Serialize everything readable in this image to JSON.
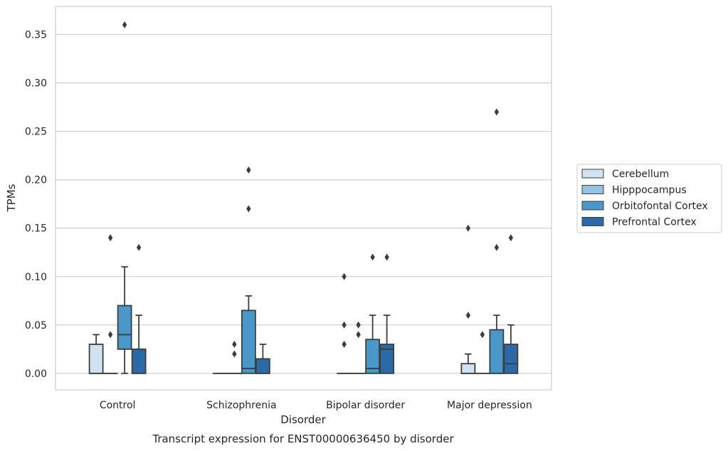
{
  "caption": "Transcript expression for ENST00000636450 by disorder",
  "chart_data": {
    "type": "box",
    "xlabel": "Disorder",
    "ylabel": "TPMs",
    "ylim": [
      -0.017,
      0.379
    ],
    "yticks": [
      "0.00",
      "0.05",
      "0.10",
      "0.15",
      "0.20",
      "0.25",
      "0.30",
      "0.35"
    ],
    "grid": true,
    "legend_position": "right",
    "categories": [
      "Control",
      "Schizophrenia",
      "Bipolar disorder",
      "Major depression"
    ],
    "series": [
      {
        "name": "Cerebellum",
        "color": "#d0e1f2",
        "boxes": [
          {
            "q1": 0.0,
            "median": 0.0,
            "q3": 0.03,
            "whisker_low": 0.0,
            "whisker_high": 0.04,
            "outliers": []
          },
          {
            "q1": 0.0,
            "median": 0.0,
            "q3": 0.0,
            "whisker_low": 0.0,
            "whisker_high": 0.0,
            "outliers": []
          },
          {
            "q1": 0.0,
            "median": 0.0,
            "q3": 0.0,
            "whisker_low": 0.0,
            "whisker_high": 0.0,
            "outliers": [
              0.03,
              0.05,
              0.1
            ]
          },
          {
            "q1": 0.0,
            "median": 0.0,
            "q3": 0.01,
            "whisker_low": 0.0,
            "whisker_high": 0.02,
            "outliers": [
              0.06,
              0.15
            ]
          }
        ]
      },
      {
        "name": "Hipppocampus",
        "color": "#94c4df",
        "boxes": [
          {
            "q1": 0.0,
            "median": 0.0,
            "q3": 0.0,
            "whisker_low": 0.0,
            "whisker_high": 0.0,
            "outliers": [
              0.04,
              0.14
            ]
          },
          {
            "q1": 0.0,
            "median": 0.0,
            "q3": 0.0,
            "whisker_low": 0.0,
            "whisker_high": 0.0,
            "outliers": [
              0.02,
              0.03
            ]
          },
          {
            "q1": 0.0,
            "median": 0.0,
            "q3": 0.0,
            "whisker_low": 0.0,
            "whisker_high": 0.0,
            "outliers": [
              0.04,
              0.05
            ]
          },
          {
            "q1": 0.0,
            "median": 0.0,
            "q3": 0.0,
            "whisker_low": 0.0,
            "whisker_high": 0.0,
            "outliers": [
              0.04
            ]
          }
        ]
      },
      {
        "name": "Orbitofontal Cortex",
        "color": "#4a98c9",
        "boxes": [
          {
            "q1": 0.025,
            "median": 0.04,
            "q3": 0.07,
            "whisker_low": 0.0,
            "whisker_high": 0.11,
            "outliers": [
              0.36
            ]
          },
          {
            "q1": 0.0,
            "median": 0.005,
            "q3": 0.065,
            "whisker_low": 0.0,
            "whisker_high": 0.08,
            "outliers": [
              0.17,
              0.21
            ]
          },
          {
            "q1": 0.0,
            "median": 0.005,
            "q3": 0.035,
            "whisker_low": 0.0,
            "whisker_high": 0.06,
            "outliers": [
              0.12
            ]
          },
          {
            "q1": 0.0,
            "median": 0.0,
            "q3": 0.045,
            "whisker_low": 0.0,
            "whisker_high": 0.06,
            "outliers": [
              0.13,
              0.27
            ]
          }
        ]
      },
      {
        "name": "Prefrontal Cortex",
        "color": "#2b6aa6",
        "boxes": [
          {
            "q1": 0.0,
            "median": 0.0,
            "q3": 0.025,
            "whisker_low": 0.0,
            "whisker_high": 0.06,
            "outliers": [
              0.13
            ]
          },
          {
            "q1": 0.0,
            "median": 0.0,
            "q3": 0.015,
            "whisker_low": 0.0,
            "whisker_high": 0.03,
            "outliers": []
          },
          {
            "q1": 0.0,
            "median": 0.025,
            "q3": 0.03,
            "whisker_low": 0.0,
            "whisker_high": 0.06,
            "outliers": [
              0.12
            ]
          },
          {
            "q1": 0.0,
            "median": 0.01,
            "q3": 0.03,
            "whisker_low": 0.0,
            "whisker_high": 0.05,
            "outliers": [
              0.14
            ]
          }
        ]
      }
    ]
  }
}
